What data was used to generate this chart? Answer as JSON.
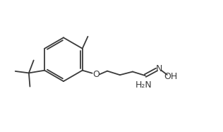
{
  "bg_color": "#ffffff",
  "line_color": "#3a3a3a",
  "line_width": 1.3,
  "figsize": [
    3.16,
    1.87
  ],
  "dpi": 100,
  "xlim": [
    0,
    10
  ],
  "ylim": [
    0,
    6
  ]
}
